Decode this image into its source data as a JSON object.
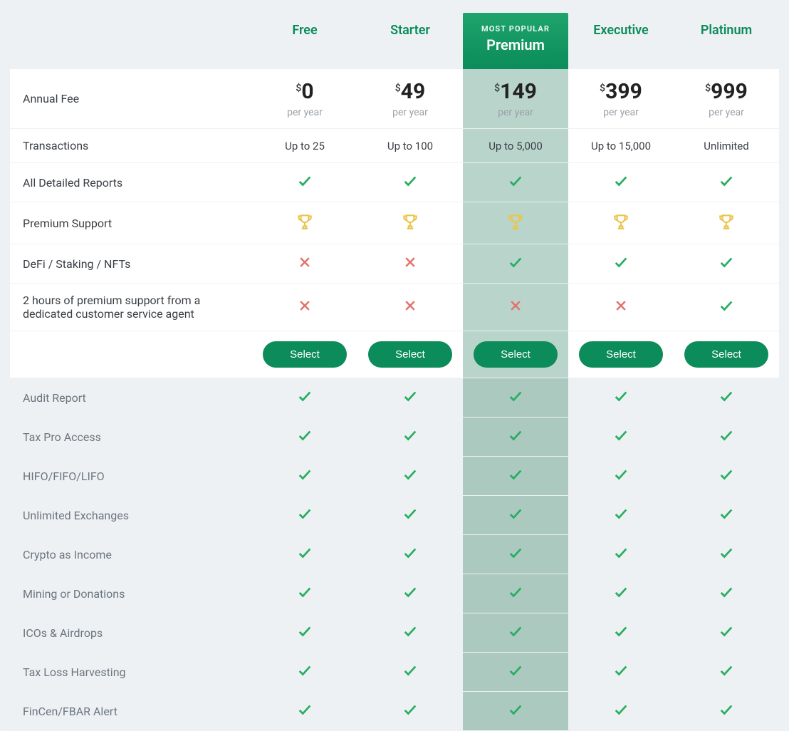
{
  "colors": {
    "page_bg": "#eef1f3",
    "row_bg": "#ffffff",
    "row_alt_bg": "#eef1f3",
    "row_border": "#edf0f2",
    "highlight_bg": "#b9d4cb",
    "highlight_alt_bg": "#acc9c0",
    "accent_green": "#0b8c5a",
    "check_green": "#27ae60",
    "cross_red": "#e3726c",
    "trophy_gold": "#eac54f",
    "muted_text": "#6b7680",
    "price_text": "#222222"
  },
  "layout": {
    "grid_columns": "340px repeat(5, 1fr)",
    "featured_index": 2
  },
  "plans": [
    {
      "name": "Free",
      "featured": false,
      "price": "0",
      "currency": "$",
      "per": "per year",
      "select_label": "Select"
    },
    {
      "name": "Starter",
      "featured": false,
      "price": "49",
      "currency": "$",
      "per": "per year",
      "select_label": "Select"
    },
    {
      "name": "Premium",
      "featured": true,
      "badge": "MOST POPULAR",
      "price": "149",
      "currency": "$",
      "per": "per year",
      "select_label": "Select"
    },
    {
      "name": "Executive",
      "featured": false,
      "price": "399",
      "currency": "$",
      "per": "per year",
      "select_label": "Select"
    },
    {
      "name": "Platinum",
      "featured": false,
      "price": "999",
      "currency": "$",
      "per": "per year",
      "select_label": "Select"
    }
  ],
  "section1_rows": [
    {
      "label": "Annual Fee",
      "type": "price"
    },
    {
      "label": "Transactions",
      "type": "text",
      "values": [
        "Up to 25",
        "Up to 100",
        "Up to 5,000",
        "Up to 15,000",
        "Unlimited"
      ]
    },
    {
      "label": "All Detailed Reports",
      "type": "icons",
      "values": [
        "check",
        "check",
        "check",
        "check",
        "check"
      ]
    },
    {
      "label": "Premium Support",
      "type": "icons",
      "values": [
        "trophy",
        "trophy",
        "trophy",
        "trophy",
        "trophy"
      ]
    },
    {
      "label": "DeFi / Staking / NFTs",
      "type": "icons",
      "values": [
        "cross",
        "cross",
        "check",
        "check",
        "check"
      ]
    },
    {
      "label": "2 hours of premium support from a dedicated customer service agent",
      "type": "icons",
      "values": [
        "cross",
        "cross",
        "cross",
        "cross",
        "check"
      ]
    },
    {
      "label": "",
      "type": "select"
    }
  ],
  "section2_rows": [
    {
      "label": "Audit Report",
      "type": "icons",
      "values": [
        "check",
        "check",
        "check",
        "check",
        "check"
      ]
    },
    {
      "label": "Tax Pro Access",
      "type": "icons",
      "values": [
        "check",
        "check",
        "check",
        "check",
        "check"
      ]
    },
    {
      "label": "HIFO/FIFO/LIFO",
      "type": "icons",
      "values": [
        "check",
        "check",
        "check",
        "check",
        "check"
      ]
    },
    {
      "label": "Unlimited Exchanges",
      "type": "icons",
      "values": [
        "check",
        "check",
        "check",
        "check",
        "check"
      ]
    },
    {
      "label": "Crypto as Income",
      "type": "icons",
      "values": [
        "check",
        "check",
        "check",
        "check",
        "check"
      ]
    },
    {
      "label": "Mining or Donations",
      "type": "icons",
      "values": [
        "check",
        "check",
        "check",
        "check",
        "check"
      ]
    },
    {
      "label": "ICOs & Airdrops",
      "type": "icons",
      "values": [
        "check",
        "check",
        "check",
        "check",
        "check"
      ]
    },
    {
      "label": "Tax Loss Harvesting",
      "type": "icons",
      "values": [
        "check",
        "check",
        "check",
        "check",
        "check"
      ]
    },
    {
      "label": "FinCen/FBAR Alert",
      "type": "icons",
      "values": [
        "check",
        "check",
        "check",
        "check",
        "check"
      ]
    }
  ]
}
